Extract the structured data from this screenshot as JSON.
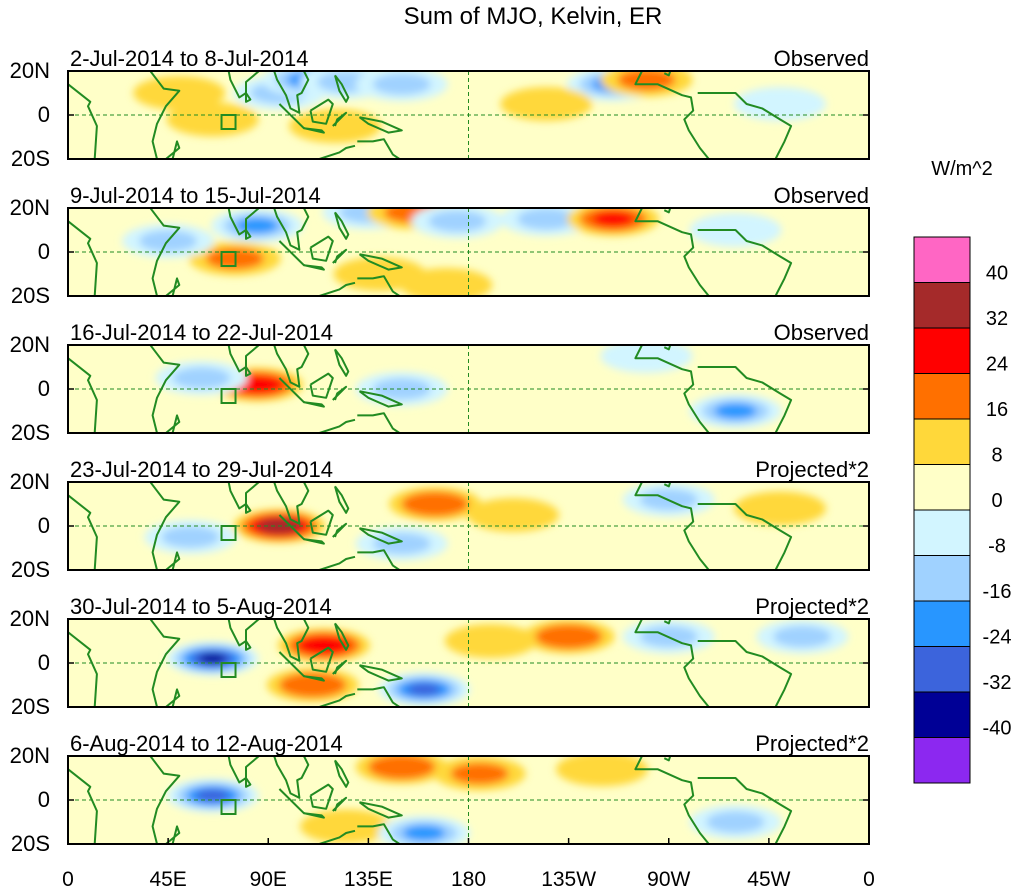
{
  "chart_data": {
    "type": "heatmap",
    "title": "Sum of MJO, Kelvin, ER",
    "colorbar": {
      "units": "W/m^2",
      "levels": [
        40,
        32,
        24,
        16,
        8,
        0,
        -8,
        -16,
        -24,
        -32,
        -40
      ],
      "colors": [
        "#ff66c4",
        "#a52a2a",
        "#ff0000",
        "#ff7000",
        "#ffd83a",
        "#ffffc8",
        "#d2f5ff",
        "#a0d2ff",
        "#2896ff",
        "#3c64dc",
        "#000096",
        "#8c28f0"
      ]
    },
    "xaxis": {
      "ticks": [
        "0",
        "45E",
        "90E",
        "135E",
        "180",
        "135W",
        "90W",
        "45W",
        "0"
      ]
    },
    "yaxis": {
      "ticks": [
        "20N",
        "0",
        "20S"
      ]
    },
    "panels": [
      {
        "period": "2-Jul-2014 to 8-Jul-2014",
        "label": "Observed",
        "anomalies": [
          {
            "lon": 50,
            "lat": 10,
            "value": 10
          },
          {
            "lon": 65,
            "lat": -2,
            "value": 10
          },
          {
            "lon": 95,
            "lat": 10,
            "value": -10
          },
          {
            "lon": 108,
            "lat": 16,
            "value": -20
          },
          {
            "lon": 125,
            "lat": 15,
            "value": -12
          },
          {
            "lon": 150,
            "lat": 14,
            "value": -16
          },
          {
            "lon": 120,
            "lat": -5,
            "value": 8
          },
          {
            "lon": 245,
            "lat": 14,
            "value": -22
          },
          {
            "lon": 260,
            "lat": 16,
            "value": 16
          },
          {
            "lon": 215,
            "lat": 5,
            "value": 8
          },
          {
            "lon": 320,
            "lat": 5,
            "value": -8
          }
        ]
      },
      {
        "period": "9-Jul-2014 to 15-Jul-2014",
        "label": "Observed",
        "anomalies": [
          {
            "lon": 85,
            "lat": 12,
            "value": -20
          },
          {
            "lon": 75,
            "lat": -3,
            "value": 16
          },
          {
            "lon": 45,
            "lat": 5,
            "value": -10
          },
          {
            "lon": 135,
            "lat": 18,
            "value": -12
          },
          {
            "lon": 155,
            "lat": 18,
            "value": 16
          },
          {
            "lon": 175,
            "lat": 14,
            "value": -16
          },
          {
            "lon": 215,
            "lat": 15,
            "value": -16
          },
          {
            "lon": 245,
            "lat": 15,
            "value": 24
          },
          {
            "lon": 140,
            "lat": -10,
            "value": 10
          },
          {
            "lon": 170,
            "lat": -15,
            "value": 8
          },
          {
            "lon": 300,
            "lat": 10,
            "value": -8
          }
        ]
      },
      {
        "period": "16-Jul-2014 to 22-Jul-2014",
        "label": "Observed",
        "anomalies": [
          {
            "lon": 85,
            "lat": 2,
            "value": 28
          },
          {
            "lon": 60,
            "lat": 5,
            "value": -14
          },
          {
            "lon": 150,
            "lat": 0,
            "value": -10
          },
          {
            "lon": 260,
            "lat": 15,
            "value": -8
          },
          {
            "lon": 300,
            "lat": -10,
            "value": -18
          },
          {
            "lon": 200,
            "lat": -5,
            "value": 4
          }
        ]
      },
      {
        "period": "23-Jul-2014 to 29-Jul-2014",
        "label": "Projected*2",
        "anomalies": [
          {
            "lon": 95,
            "lat": 0,
            "value": 34
          },
          {
            "lon": 165,
            "lat": 10,
            "value": 22
          },
          {
            "lon": 200,
            "lat": 5,
            "value": 12
          },
          {
            "lon": 150,
            "lat": -8,
            "value": -14
          },
          {
            "lon": 55,
            "lat": -5,
            "value": -10
          },
          {
            "lon": 270,
            "lat": 12,
            "value": -10
          },
          {
            "lon": 320,
            "lat": 8,
            "value": 10
          }
        ]
      },
      {
        "period": "30-Jul-2014 to 5-Aug-2014",
        "label": "Projected*2",
        "anomalies": [
          {
            "lon": 65,
            "lat": 2,
            "value": -36
          },
          {
            "lon": 115,
            "lat": 8,
            "value": 26
          },
          {
            "lon": 110,
            "lat": -10,
            "value": 22
          },
          {
            "lon": 160,
            "lat": -12,
            "value": -26
          },
          {
            "lon": 225,
            "lat": 12,
            "value": 18
          },
          {
            "lon": 270,
            "lat": 12,
            "value": -16
          },
          {
            "lon": 330,
            "lat": 12,
            "value": -16
          },
          {
            "lon": 190,
            "lat": 10,
            "value": 8
          }
        ]
      },
      {
        "period": "6-Aug-2014 to 12-Aug-2014",
        "label": "Projected*2",
        "anomalies": [
          {
            "lon": 65,
            "lat": 2,
            "value": -28
          },
          {
            "lon": 150,
            "lat": 15,
            "value": 22
          },
          {
            "lon": 185,
            "lat": 12,
            "value": 16
          },
          {
            "lon": 240,
            "lat": 14,
            "value": 14
          },
          {
            "lon": 125,
            "lat": -12,
            "value": 14
          },
          {
            "lon": 160,
            "lat": -15,
            "value": -18
          },
          {
            "lon": 300,
            "lat": -10,
            "value": -10
          }
        ]
      }
    ]
  }
}
